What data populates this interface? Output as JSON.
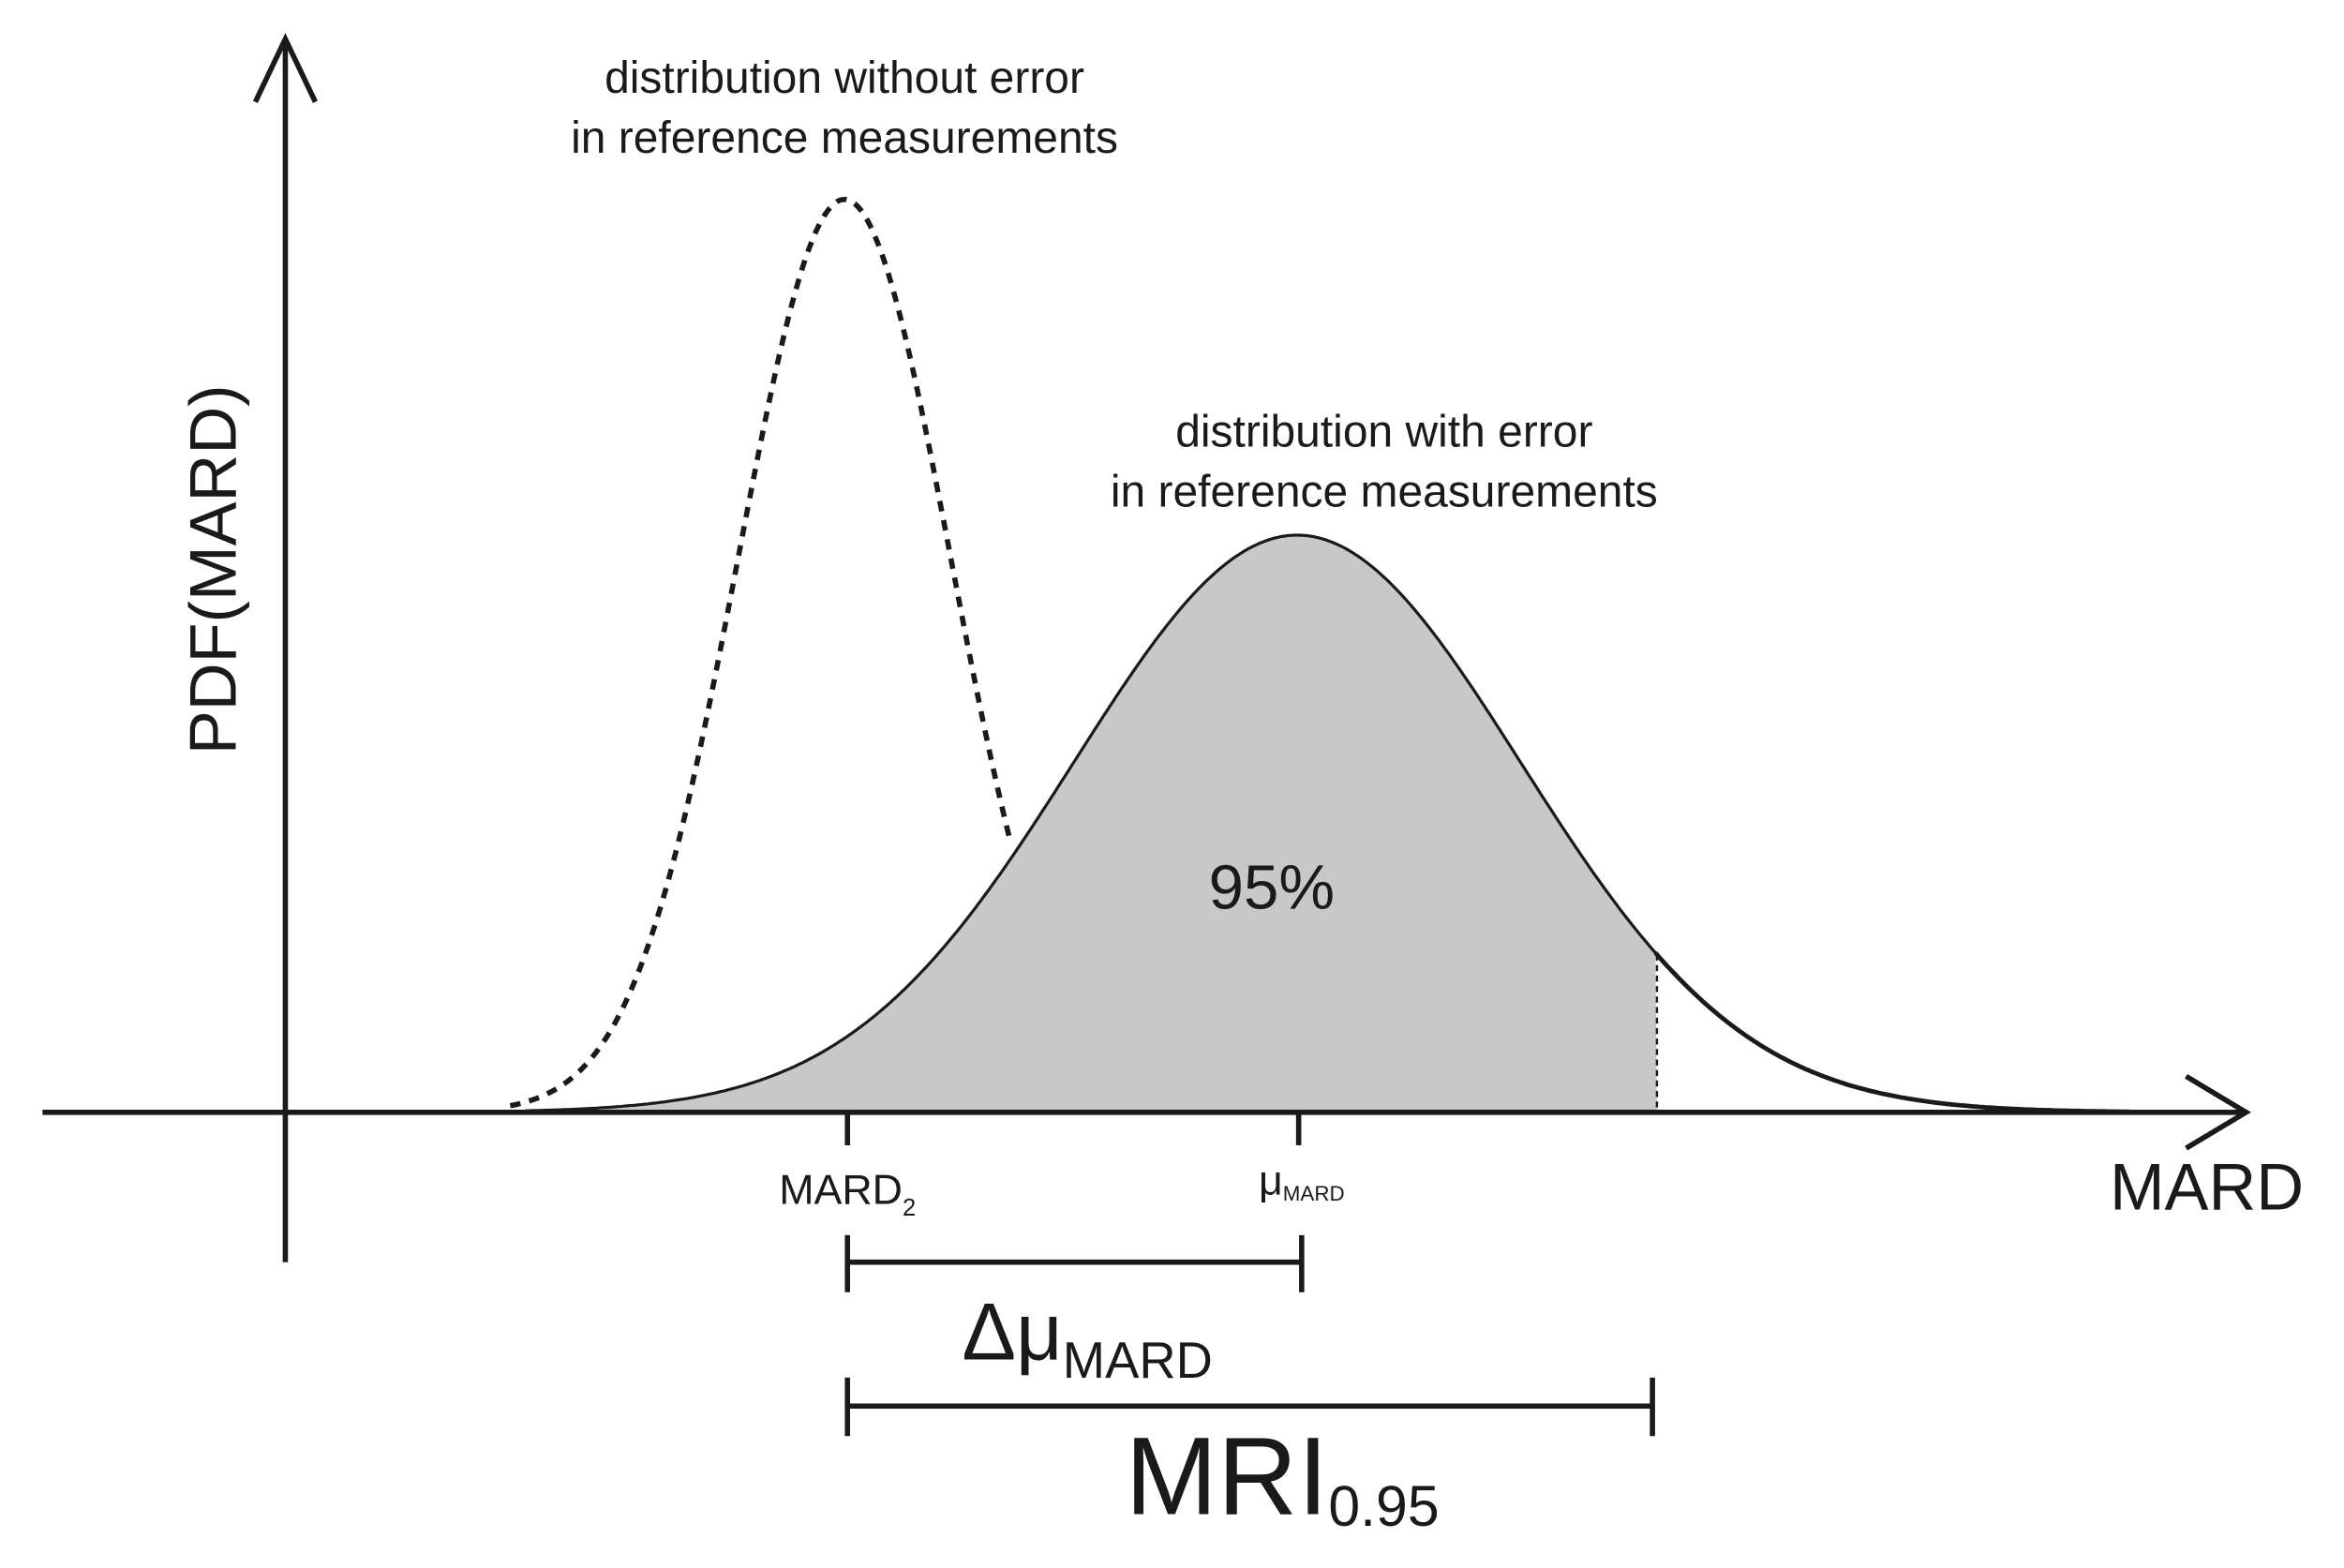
{
  "axes": {
    "y_label": "PDF(MARD)",
    "x_label": "MARD"
  },
  "curves": [
    {
      "label_lines": [
        "distribution without error",
        "in reference measurements"
      ]
    },
    {
      "label_lines": [
        "distribution with error",
        "in reference measurements"
      ]
    }
  ],
  "shaded_area_label": "95%",
  "ticks": [
    {
      "label": "MARD",
      "subscript": "2"
    },
    {
      "label": "μ",
      "subscript": "MARD"
    }
  ],
  "brackets": [
    {
      "label": "Δμ",
      "subscript": "MARD"
    },
    {
      "label": "MRI",
      "subscript": "0.95"
    }
  ]
}
